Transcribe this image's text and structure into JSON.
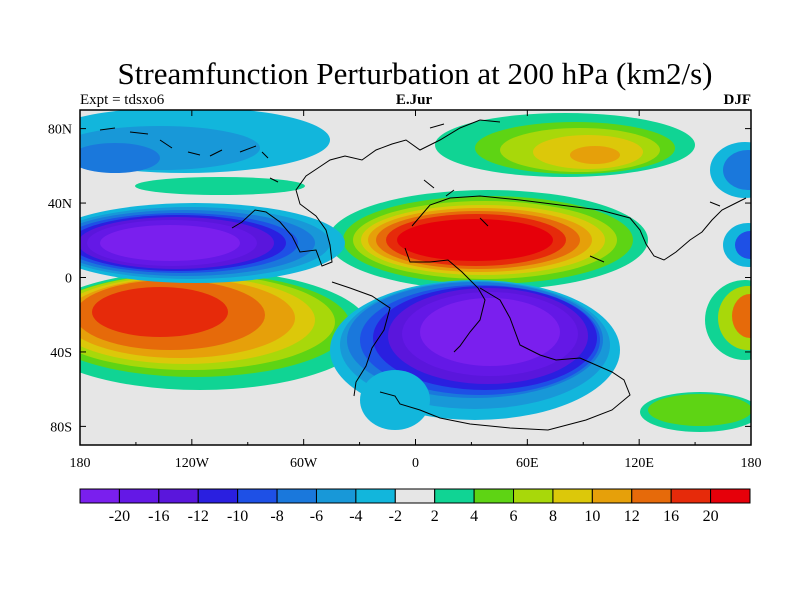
{
  "chart_data": {
    "type": "heatmap",
    "title": "Streamfunction Perturbation at 200 hPa (km2/s)",
    "left_string": "Expt = tdsxo6",
    "center_string": "E.Jur",
    "right_string": "DJF",
    "projection": "cylindrical equidistant",
    "xlim": [
      -180,
      180
    ],
    "ylim": [
      -90,
      90
    ],
    "x_ticks": [
      -180,
      -120,
      -60,
      0,
      60,
      120,
      180
    ],
    "x_tick_labels": [
      "180",
      "120W",
      "60W",
      "0",
      "60E",
      "120E",
      "180"
    ],
    "y_ticks": [
      80,
      40,
      0,
      -40,
      -80
    ],
    "y_tick_labels": [
      "80N",
      "40N",
      "0",
      "40S",
      "80S"
    ],
    "contour_levels": [
      -20,
      -16,
      -12,
      -10,
      -8,
      -6,
      -4,
      -2,
      2,
      4,
      6,
      8,
      10,
      12,
      16,
      20
    ],
    "colorbar_labels": [
      "-20",
      "-16",
      "-12",
      "-10",
      "-8",
      "-6",
      "-4",
      "-2",
      "2",
      "4",
      "6",
      "8",
      "10",
      "12",
      "16",
      "20"
    ],
    "colorbar_colors": [
      "#7a1fee",
      "#6418e6",
      "#5a16dc",
      "#2a1fe0",
      "#1e50e6",
      "#1a78dc",
      "#1898d8",
      "#12b6dc",
      "#e6e6e6",
      "#10d494",
      "#5ed414",
      "#a8d80a",
      "#dcc80a",
      "#e6a00a",
      "#e66a0a",
      "#e62a0a",
      "#e6000a"
    ],
    "features": [
      {
        "name": "north-pacific-low",
        "lon": -135,
        "lat": 25,
        "value": -20
      },
      {
        "name": "south-pacific-high",
        "lon": -130,
        "lat": -20,
        "value": 16
      },
      {
        "name": "afro-asian-high",
        "lon": 30,
        "lat": 22,
        "value": 20
      },
      {
        "name": "southern-low",
        "lon": 40,
        "lat": -30,
        "value": -20
      },
      {
        "name": "arctic-siberia-high",
        "lon": 100,
        "lat": 68,
        "value": 10
      },
      {
        "name": "arctic-canada-low",
        "lon": -160,
        "lat": 75,
        "value": -6
      }
    ]
  }
}
